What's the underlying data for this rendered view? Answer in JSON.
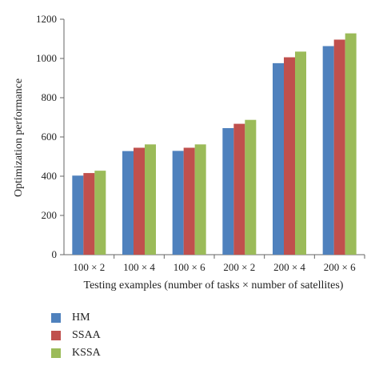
{
  "chart_data": {
    "type": "bar",
    "xlabel": "Testing examples (number of tasks × number of satellites)",
    "ylabel": "Optimization performance",
    "ylim": [
      0,
      1200
    ],
    "yticks": [
      0,
      200,
      400,
      600,
      800,
      1000,
      1200
    ],
    "categories": [
      "100 × 2",
      "100 × 4",
      "100 × 6",
      "200 × 2",
      "200 × 4",
      "200 × 6"
    ],
    "series": [
      {
        "name": "HM",
        "color": "#4f81bd",
        "values": [
          403,
          528,
          529,
          645,
          976,
          1063
        ]
      },
      {
        "name": "SSAA",
        "color": "#c0504d",
        "values": [
          416,
          545,
          545,
          667,
          1006,
          1096
        ]
      },
      {
        "name": "KSSA",
        "color": "#9bbb59",
        "values": [
          428,
          562,
          562,
          687,
          1035,
          1128
        ]
      }
    ],
    "legend_position": "bottom-left",
    "grid": false
  }
}
